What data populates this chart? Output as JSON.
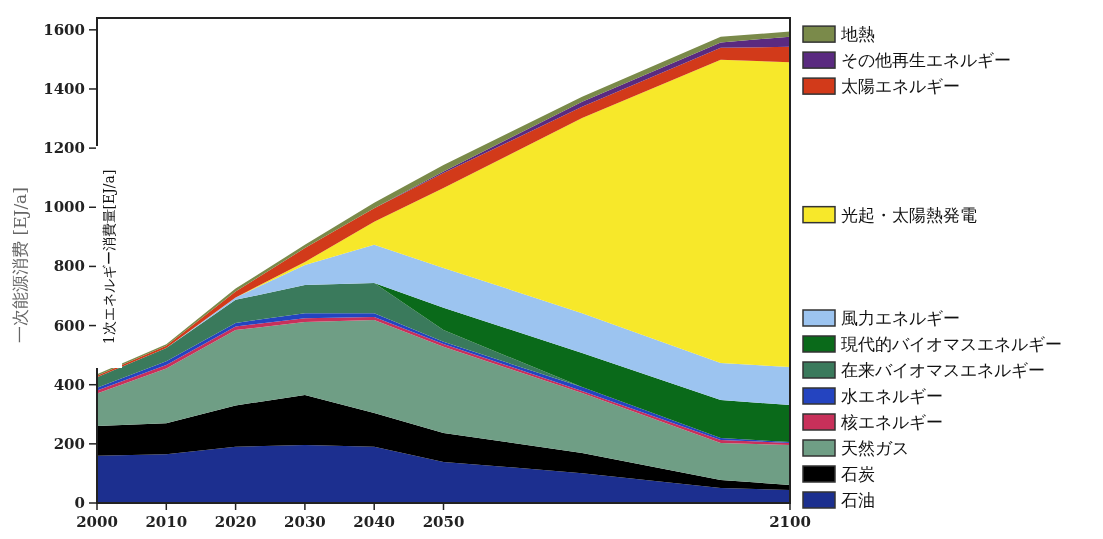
{
  "chart_data": {
    "type": "area",
    "stacked": true,
    "ylabel": "一次能源消费 [EJ/a]",
    "annotations": [
      "1次エネルギー消費量[EJ/a]"
    ],
    "x": [
      2000,
      2010,
      2020,
      2030,
      2040,
      2050,
      2070,
      2090,
      2100
    ],
    "xlim": [
      2000,
      2100
    ],
    "xticks": [
      2000,
      2010,
      2020,
      2030,
      2040,
      2050,
      2100
    ],
    "ylim": [
      0,
      1640
    ],
    "yticks": [
      0,
      200,
      400,
      600,
      800,
      1000,
      1200,
      1400,
      1600
    ],
    "legend": "right",
    "series": [
      {
        "name": "石油",
        "color": "#1c2f8f",
        "values": [
          160,
          165,
          190,
          196,
          190,
          139,
          101,
          51,
          44
        ]
      },
      {
        "name": "石炭",
        "color": "#000000",
        "values": [
          100,
          105,
          140,
          169,
          114,
          98,
          68,
          27,
          17
        ]
      },
      {
        "name": "天然ガス",
        "color": "#6f9e85",
        "values": [
          110,
          185,
          255,
          247,
          315,
          291,
          203,
          125,
          135
        ]
      },
      {
        "name": "核エネルギー",
        "color": "#c8305a",
        "values": [
          10,
          12,
          12,
          13,
          10,
          10,
          7,
          10,
          7
        ]
      },
      {
        "name": "水エネルギー",
        "color": "#2444c0",
        "values": [
          10,
          12,
          12,
          17,
          13,
          7,
          13,
          7,
          3
        ]
      },
      {
        "name": "在来バイオマスエネルギー",
        "color": "#3a7a5c",
        "values": [
          35,
          45,
          78,
          95,
          102,
          40,
          0,
          null,
          null
        ]
      },
      {
        "name": "現代的バイオマスエネルギー",
        "color": "#0a6a1a",
        "values": [
          null,
          null,
          null,
          null,
          0,
          75,
          115,
          128,
          125
        ]
      },
      {
        "name": "風力エネルギー",
        "color": "#9cc4f0",
        "values": [
          null,
          0,
          8,
          68,
          129,
          135,
          135,
          125,
          129
        ]
      },
      {
        "name": "光起・太陽熱発電",
        "color": "#f7e82a",
        "values": [
          null,
          null,
          0,
          10,
          78,
          270,
          660,
          1026,
          1030
        ]
      },
      {
        "name": "太陽エネルギー",
        "color": "#d23a1a",
        "values": [
          5,
          8,
          20,
          47,
          46,
          51,
          38,
          40,
          53
        ]
      },
      {
        "name": "その他再生エネルギー",
        "color": "#5a2a80",
        "values": [
          null,
          null,
          null,
          null,
          0,
          5,
          17,
          18,
          34
        ]
      },
      {
        "name": "地熱",
        "color": "#7a8a4a",
        "values": [
          5,
          5,
          10,
          11,
          18,
          22,
          17,
          20,
          17
        ]
      }
    ]
  }
}
